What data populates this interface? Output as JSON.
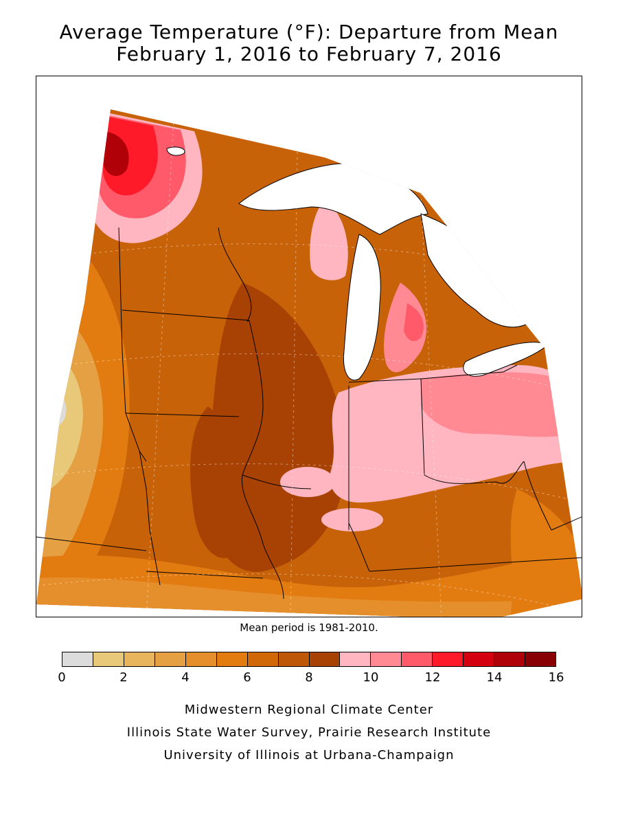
{
  "title": {
    "line1": "Average Temperature (°F): Departure from Mean",
    "line2": "February 1, 2016 to February 7, 2016"
  },
  "mean_note": "Mean period is 1981-2010.",
  "legend": {
    "colors": [
      "#dcdcdc",
      "#e8c97a",
      "#e8b45c",
      "#e5a043",
      "#e58e2c",
      "#e27b10",
      "#d06808",
      "#be5808",
      "#a84204",
      "#ffb6c1",
      "#ff8a93",
      "#ff5a6a",
      "#ff1a2a",
      "#d40010",
      "#b00008",
      "#880004"
    ],
    "ticks": [
      "0",
      "2",
      "4",
      "6",
      "8",
      "10",
      "12",
      "14",
      "16"
    ]
  },
  "map": {
    "region": "Upper Midwest",
    "water_color": "#ffffff",
    "base_color": "#c86208",
    "boundary_icon": "state-boundary-lines"
  },
  "credits": {
    "line1": "Midwestern Regional Climate Center",
    "line2": "Illinois State Water Survey, Prairie Research Institute",
    "line3": "University of Illinois at Urbana-Champaign"
  }
}
